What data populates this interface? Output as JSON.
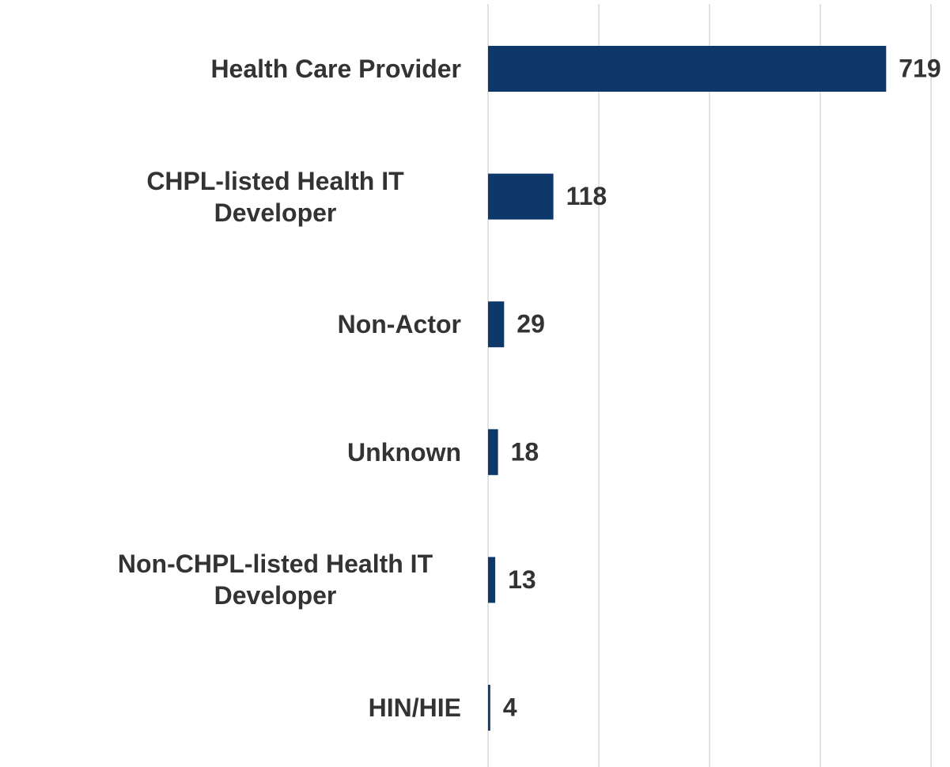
{
  "chart_data": {
    "type": "bar",
    "orientation": "horizontal",
    "categories": [
      "Health Care Provider",
      "CHPL-listed Health IT Developer",
      "Non-Actor",
      "Unknown",
      "Non-CHPL-listed Health IT Developer",
      "HIN/HIE"
    ],
    "values": [
      719,
      118,
      29,
      18,
      13,
      4
    ],
    "color": "#0e386a",
    "xlim": [
      0,
      800
    ],
    "xticks": [
      0,
      200,
      400,
      600,
      800
    ],
    "grid": true
  }
}
